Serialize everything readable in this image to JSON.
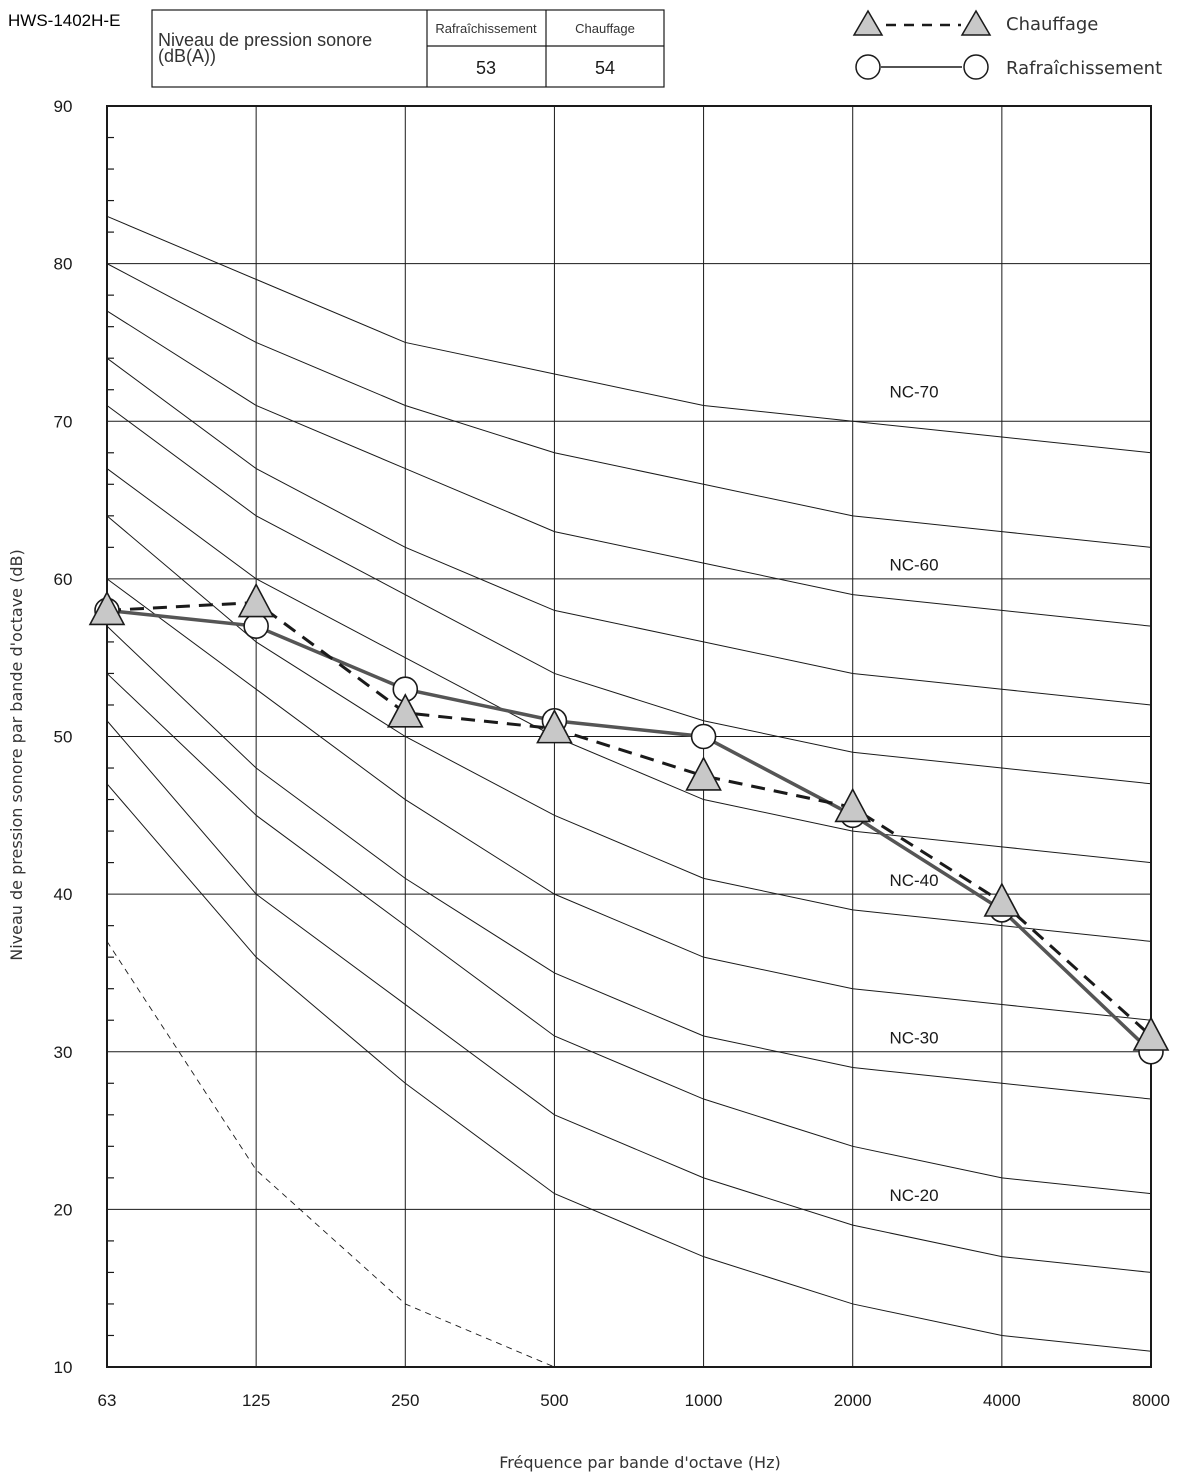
{
  "header": {
    "model": "HWS-1402H-E",
    "table_label": "Niveau de pression sonore\n(dB(A))",
    "col_cool": "Rafraîchissement",
    "col_heat": "Chauffage",
    "val_cool": "53",
    "val_heat": "54"
  },
  "legend": [
    {
      "name": "Chauffage",
      "marker": "triangle",
      "line": "dashed"
    },
    {
      "name": "Rafraîchissement",
      "marker": "circle",
      "line": "solid"
    }
  ],
  "chart_data": {
    "type": "line",
    "xlabel": "Fréquence par bande d'octave (Hz)",
    "ylabel": "Niveau de pression sonore par bande d'octave (dB)",
    "categories": [
      "63",
      "125",
      "250",
      "500",
      "1000",
      "2000",
      "4000",
      "8000"
    ],
    "ylim": [
      10,
      90
    ],
    "yticks": [
      10,
      20,
      30,
      40,
      50,
      60,
      70,
      80,
      90
    ],
    "grid": true,
    "legend_position": "top-right",
    "series": [
      {
        "name": "Rafraîchissement",
        "marker": "circle",
        "line": "solid",
        "values": [
          58,
          57,
          53,
          51,
          50,
          45,
          39,
          30
        ]
      },
      {
        "name": "Chauffage",
        "marker": "triangle",
        "line": "dashed",
        "values": [
          58,
          58.5,
          51.5,
          50.5,
          47.5,
          45.5,
          39.5,
          31
        ]
      }
    ],
    "nc_curves": [
      {
        "label": "NC-70",
        "values": [
          83,
          79,
          75,
          73,
          71,
          70,
          69,
          68
        ]
      },
      {
        "label": "",
        "values": [
          80,
          75,
          71,
          68,
          66,
          64,
          63,
          62
        ]
      },
      {
        "label": "NC-60",
        "values": [
          77,
          71,
          67,
          63,
          61,
          59,
          58,
          57
        ]
      },
      {
        "label": "",
        "values": [
          74,
          67,
          62,
          58,
          56,
          54,
          53,
          52
        ]
      },
      {
        "label": "",
        "values": [
          71,
          64,
          59,
          54,
          51,
          49,
          48,
          47
        ]
      },
      {
        "label": "",
        "values": [
          67,
          60,
          55,
          50,
          46,
          44,
          43,
          42
        ]
      },
      {
        "label": "NC-40",
        "values": [
          64,
          56,
          50,
          45,
          41,
          39,
          38,
          37
        ]
      },
      {
        "label": "",
        "values": [
          60,
          53,
          46,
          40,
          36,
          34,
          33,
          32
        ]
      },
      {
        "label": "NC-30",
        "values": [
          57,
          48,
          41,
          35,
          31,
          29,
          28,
          27
        ]
      },
      {
        "label": "",
        "values": [
          54,
          45,
          38,
          31,
          27,
          24,
          22,
          21
        ]
      },
      {
        "label": "NC-20",
        "values": [
          51,
          40,
          33,
          26,
          22,
          19,
          17,
          16
        ]
      },
      {
        "label": "",
        "values": [
          47,
          36,
          28,
          21,
          17,
          14,
          12,
          11
        ]
      }
    ],
    "threshold_curve": {
      "style": "dashed",
      "values": [
        37,
        22.5,
        14,
        10
      ]
    }
  }
}
